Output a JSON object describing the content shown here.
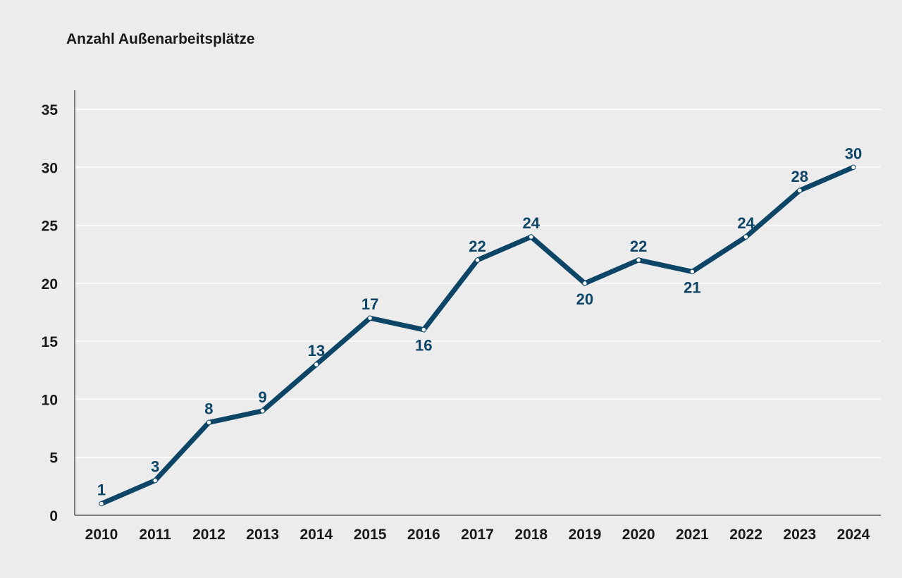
{
  "chart_data": {
    "type": "line",
    "title": "Anzahl Außenarbeitsplätze",
    "xlabel": "",
    "ylabel": "",
    "categories": [
      "2010",
      "2011",
      "2012",
      "2013",
      "2014",
      "2015",
      "2016",
      "2017",
      "2018",
      "2019",
      "2020",
      "2021",
      "2022",
      "2023",
      "2024"
    ],
    "series": [
      {
        "values": [
          1,
          3,
          8,
          9,
          13,
          17,
          16,
          22,
          24,
          20,
          22,
          21,
          24,
          28,
          30
        ]
      }
    ],
    "ylim": [
      0,
      35
    ],
    "yticks": [
      "0",
      "5",
      "10",
      "15",
      "20",
      "25",
      "30",
      "35"
    ],
    "grid": true,
    "legend": "none",
    "colors": {
      "line": "#0d4566",
      "grid": "#ffffff",
      "axis": "#555555",
      "marker": "#ffffff"
    }
  }
}
